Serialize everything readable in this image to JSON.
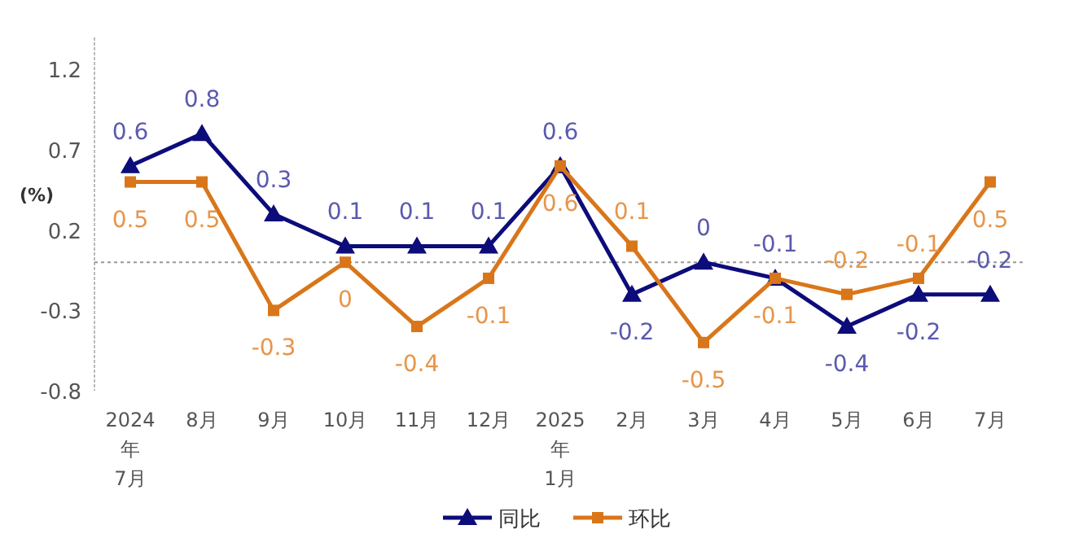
{
  "chart_data": {
    "type": "line",
    "ylabel": "(%)",
    "categories": [
      "2024\n年\n7月",
      "8月",
      "9月",
      "10月",
      "11月",
      "12月",
      "2025\n年\n1月",
      "2月",
      "3月",
      "4月",
      "5月",
      "6月",
      "7月"
    ],
    "series": [
      {
        "name": "同比",
        "color": "#0c0c7a",
        "marker": "triangle",
        "values": [
          0.6,
          0.8,
          0.3,
          0.1,
          0.1,
          0.1,
          0.6,
          -0.2,
          0,
          -0.1,
          -0.4,
          -0.2,
          -0.2
        ]
      },
      {
        "name": "环比",
        "color": "#d9761a",
        "marker": "square",
        "values": [
          0.5,
          0.5,
          -0.3,
          0,
          -0.4,
          -0.1,
          0.6,
          0.1,
          -0.5,
          -0.1,
          -0.2,
          -0.1,
          0.5
        ]
      }
    ],
    "ylim": [
      -0.8,
      1.4
    ],
    "yticks": [
      -0.8,
      -0.3,
      0.2,
      0.7,
      1.2
    ],
    "ref_lines": [
      {
        "axis": "y",
        "value": 0,
        "color": "#999999",
        "line_style": "dotted"
      }
    ],
    "data_labels": true,
    "grid": false,
    "legend": "bottom",
    "line_style": "solid"
  }
}
